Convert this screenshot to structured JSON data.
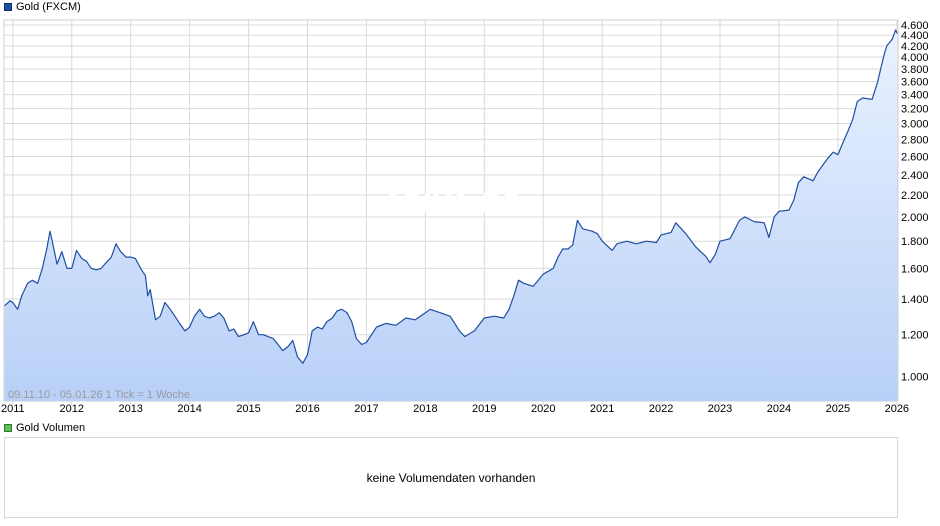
{
  "legend": {
    "price_label": "Gold (FXCM)",
    "volume_label": "Gold Volumen"
  },
  "watermark": "ARIVA.DE",
  "range_label": "09.11.10 - 05.01.26   1 Tick = 1 Woche",
  "volume_message": "keine Volumendaten vorhanden",
  "colors": {
    "line": "#1f4fa0",
    "fill_top": "#eaf2ff",
    "fill_bottom": "#b8d0f7",
    "grid": "#d9d9d9"
  },
  "chart_data": {
    "type": "area",
    "title": "Gold (FXCM)",
    "xlabel": "",
    "ylabel": "",
    "y_scale": "log",
    "ylim": [
      900,
      4700
    ],
    "xlim": [
      2010.85,
      2026.02
    ],
    "x_ticks": [
      "2011",
      "2012",
      "2013",
      "2014",
      "2015",
      "2016",
      "2017",
      "2018",
      "2019",
      "2020",
      "2021",
      "2022",
      "2023",
      "2024",
      "2025",
      "2026"
    ],
    "y_ticks": [
      "1.000",
      "1.200",
      "1.400",
      "1.600",
      "1.800",
      "2.000",
      "2.200",
      "2.400",
      "2.600",
      "2.800",
      "3.000",
      "3.200",
      "3.400",
      "3.600",
      "3.800",
      "4.000",
      "4.200",
      "4.400",
      "4.600"
    ],
    "y_tick_values": [
      1000,
      1200,
      1400,
      1600,
      1800,
      2000,
      2200,
      2400,
      2600,
      2800,
      3000,
      3200,
      3400,
      3600,
      3800,
      4000,
      4200,
      4400,
      4600
    ],
    "grid": true,
    "series": [
      {
        "name": "Gold (FXCM)",
        "x": [
          2010.86,
          2010.95,
          2011.0,
          2011.08,
          2011.15,
          2011.25,
          2011.33,
          2011.42,
          2011.5,
          2011.58,
          2011.63,
          2011.67,
          2011.75,
          2011.83,
          2011.92,
          2012.0,
          2012.08,
          2012.17,
          2012.25,
          2012.33,
          2012.42,
          2012.5,
          2012.58,
          2012.67,
          2012.75,
          2012.83,
          2012.92,
          2013.0,
          2013.08,
          2013.17,
          2013.25,
          2013.29,
          2013.33,
          2013.42,
          2013.5,
          2013.58,
          2013.67,
          2013.75,
          2013.83,
          2013.92,
          2014.0,
          2014.08,
          2014.17,
          2014.25,
          2014.33,
          2014.42,
          2014.5,
          2014.58,
          2014.67,
          2014.75,
          2014.83,
          2014.92,
          2015.0,
          2015.08,
          2015.17,
          2015.25,
          2015.33,
          2015.42,
          2015.5,
          2015.58,
          2015.67,
          2015.75,
          2015.83,
          2015.92,
          2016.0,
          2016.08,
          2016.17,
          2016.25,
          2016.33,
          2016.42,
          2016.5,
          2016.58,
          2016.67,
          2016.75,
          2016.83,
          2016.92,
          2017.0,
          2017.17,
          2017.33,
          2017.5,
          2017.67,
          2017.83,
          2018.0,
          2018.08,
          2018.25,
          2018.42,
          2018.58,
          2018.67,
          2018.83,
          2019.0,
          2019.17,
          2019.33,
          2019.42,
          2019.5,
          2019.58,
          2019.67,
          2019.83,
          2020.0,
          2020.17,
          2020.25,
          2020.33,
          2020.42,
          2020.5,
          2020.58,
          2020.67,
          2020.83,
          2020.92,
          2021.0,
          2021.17,
          2021.25,
          2021.42,
          2021.58,
          2021.75,
          2021.92,
          2022.0,
          2022.17,
          2022.25,
          2022.42,
          2022.58,
          2022.67,
          2022.75,
          2022.83,
          2022.92,
          2023.0,
          2023.17,
          2023.33,
          2023.42,
          2023.58,
          2023.75,
          2023.83,
          2023.92,
          2024.0,
          2024.17,
          2024.25,
          2024.33,
          2024.42,
          2024.58,
          2024.67,
          2024.83,
          2024.92,
          2025.0,
          2025.08,
          2025.17,
          2025.25,
          2025.33,
          2025.42,
          2025.58,
          2025.67,
          2025.75,
          2025.8,
          2025.83,
          2025.92,
          2025.98,
          2026.01
        ],
        "values": [
          1360,
          1390,
          1380,
          1340,
          1420,
          1500,
          1520,
          1500,
          1600,
          1750,
          1880,
          1800,
          1630,
          1720,
          1600,
          1600,
          1730,
          1670,
          1650,
          1600,
          1590,
          1600,
          1640,
          1680,
          1780,
          1720,
          1680,
          1680,
          1670,
          1600,
          1550,
          1420,
          1460,
          1280,
          1300,
          1380,
          1340,
          1300,
          1260,
          1220,
          1240,
          1300,
          1340,
          1300,
          1290,
          1300,
          1320,
          1290,
          1220,
          1230,
          1190,
          1200,
          1210,
          1270,
          1200,
          1200,
          1190,
          1180,
          1150,
          1120,
          1140,
          1170,
          1090,
          1060,
          1100,
          1220,
          1240,
          1230,
          1270,
          1290,
          1330,
          1340,
          1320,
          1270,
          1180,
          1150,
          1160,
          1240,
          1260,
          1250,
          1290,
          1280,
          1320,
          1340,
          1320,
          1300,
          1220,
          1190,
          1220,
          1290,
          1300,
          1290,
          1340,
          1420,
          1520,
          1500,
          1480,
          1560,
          1600,
          1680,
          1740,
          1740,
          1770,
          1970,
          1900,
          1880,
          1860,
          1800,
          1730,
          1780,
          1800,
          1780,
          1800,
          1790,
          1850,
          1870,
          1950,
          1860,
          1760,
          1720,
          1690,
          1640,
          1700,
          1800,
          1820,
          1970,
          2000,
          1960,
          1950,
          1830,
          2000,
          2050,
          2060,
          2150,
          2320,
          2380,
          2340,
          2440,
          2580,
          2650,
          2620,
          2750,
          2900,
          3050,
          3300,
          3350,
          3330,
          3580,
          3900,
          4100,
          4200,
          4320,
          4500,
          4430
        ]
      }
    ]
  }
}
